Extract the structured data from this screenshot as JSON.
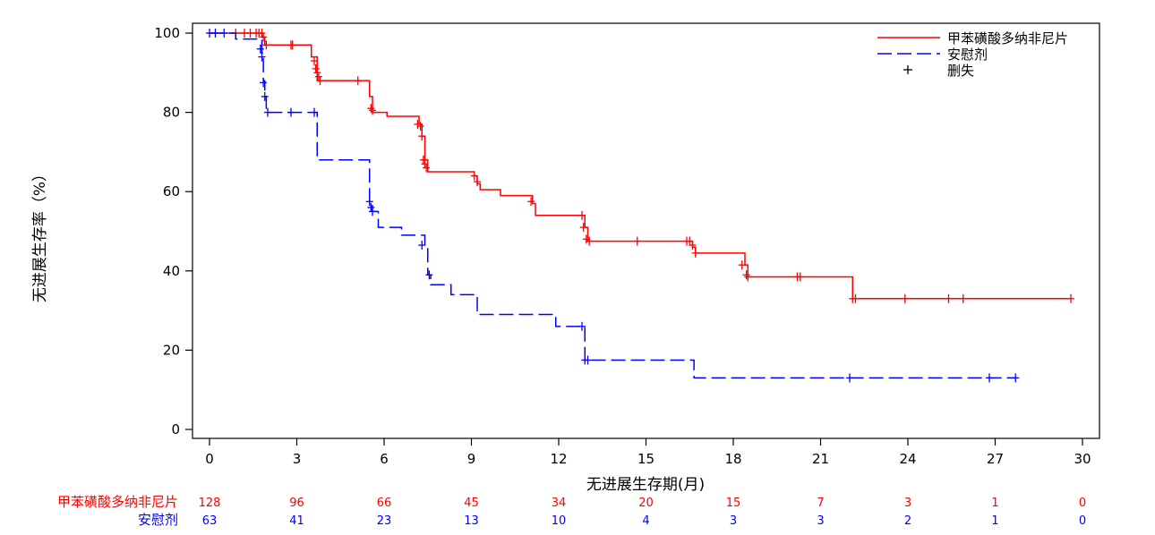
{
  "chart_data": {
    "type": "line",
    "title": "",
    "xlabel": "无进展生存期(月)",
    "ylabel": "无进展生存率（%）",
    "xlim": [
      0,
      30
    ],
    "ylim": [
      0,
      100
    ],
    "xticks": [
      0,
      3,
      6,
      9,
      12,
      15,
      18,
      21,
      24,
      27,
      30
    ],
    "yticks": [
      0,
      20,
      40,
      60,
      80,
      100
    ],
    "grid": false,
    "legend_position": "top-right",
    "legend": [
      {
        "label": "甲苯磺酸多纳非尼片",
        "style": "solid",
        "color": "#ff0000"
      },
      {
        "label": "安慰剂",
        "style": "dashed",
        "color": "#0000ff"
      },
      {
        "label": "删失",
        "style": "plus-marker",
        "color": "#000000"
      }
    ],
    "series": [
      {
        "name": "甲苯磺酸多纳非尼片",
        "color": "#ff0000",
        "style": "solid",
        "steps": [
          [
            0,
            100
          ],
          [
            1.8,
            99
          ],
          [
            1.9,
            97
          ],
          [
            3.2,
            97
          ],
          [
            3.5,
            94
          ],
          [
            3.7,
            88
          ],
          [
            5.4,
            88
          ],
          [
            5.5,
            84
          ],
          [
            5.6,
            80
          ],
          [
            6.1,
            79
          ],
          [
            7.1,
            79
          ],
          [
            7.2,
            77
          ],
          [
            7.3,
            74
          ],
          [
            7.4,
            68
          ],
          [
            7.5,
            65
          ],
          [
            9.0,
            65
          ],
          [
            9.1,
            64
          ],
          [
            9.2,
            62
          ],
          [
            9.3,
            60.5
          ],
          [
            9.9,
            60.5
          ],
          [
            10.0,
            59
          ],
          [
            11.0,
            59
          ],
          [
            11.1,
            57
          ],
          [
            11.2,
            54
          ],
          [
            12.8,
            54
          ],
          [
            12.9,
            51
          ],
          [
            13.0,
            47.5
          ],
          [
            16.5,
            47.5
          ],
          [
            16.6,
            46
          ],
          [
            16.7,
            44.5
          ],
          [
            18.3,
            44.5
          ],
          [
            18.4,
            41.5
          ],
          [
            18.5,
            38.5
          ],
          [
            22.0,
            38.5
          ],
          [
            22.1,
            33
          ],
          [
            29.6,
            33
          ]
        ],
        "censored": [
          [
            0.9,
            100
          ],
          [
            1.2,
            100
          ],
          [
            1.4,
            100
          ],
          [
            1.6,
            100
          ],
          [
            1.7,
            100
          ],
          [
            1.8,
            100
          ],
          [
            1.85,
            99
          ],
          [
            1.95,
            97
          ],
          [
            2.8,
            97
          ],
          [
            2.85,
            97
          ],
          [
            3.6,
            93
          ],
          [
            3.65,
            91
          ],
          [
            3.7,
            90
          ],
          [
            3.75,
            89
          ],
          [
            3.8,
            88
          ],
          [
            5.1,
            88
          ],
          [
            5.55,
            81
          ],
          [
            5.6,
            80.5
          ],
          [
            7.15,
            77
          ],
          [
            7.25,
            76.5
          ],
          [
            7.3,
            74
          ],
          [
            7.35,
            68
          ],
          [
            7.4,
            67
          ],
          [
            7.45,
            66
          ],
          [
            9.1,
            64
          ],
          [
            9.2,
            62.5
          ],
          [
            11.05,
            57.5
          ],
          [
            12.8,
            54
          ],
          [
            12.85,
            51
          ],
          [
            12.95,
            48
          ],
          [
            13.05,
            47.5
          ],
          [
            14.7,
            47.5
          ],
          [
            16.4,
            47.5
          ],
          [
            16.5,
            47.5
          ],
          [
            16.6,
            46.5
          ],
          [
            16.7,
            44.5
          ],
          [
            18.3,
            41.5
          ],
          [
            18.45,
            39
          ],
          [
            18.5,
            38.5
          ],
          [
            20.2,
            38.5
          ],
          [
            20.3,
            38.5
          ],
          [
            22.1,
            33
          ],
          [
            22.2,
            33
          ],
          [
            23.9,
            33
          ],
          [
            25.4,
            33
          ],
          [
            25.9,
            33
          ],
          [
            29.6,
            33
          ]
        ]
      },
      {
        "name": "安慰剂",
        "color": "#0000ff",
        "style": "dashed",
        "steps": [
          [
            0,
            100
          ],
          [
            0.9,
            98.5
          ],
          [
            1.7,
            98.5
          ],
          [
            1.8,
            95
          ],
          [
            1.85,
            88
          ],
          [
            1.9,
            84
          ],
          [
            1.95,
            80
          ],
          [
            3.6,
            80
          ],
          [
            3.7,
            68
          ],
          [
            5.4,
            68
          ],
          [
            5.5,
            57
          ],
          [
            5.6,
            55
          ],
          [
            5.8,
            51
          ],
          [
            6.5,
            51
          ],
          [
            6.6,
            49
          ],
          [
            7.3,
            49
          ],
          [
            7.4,
            46
          ],
          [
            7.5,
            39
          ],
          [
            7.6,
            36.5
          ],
          [
            8.2,
            36.5
          ],
          [
            8.3,
            34
          ],
          [
            9.1,
            34
          ],
          [
            9.2,
            29
          ],
          [
            11.8,
            29
          ],
          [
            11.9,
            26
          ],
          [
            12.8,
            26
          ],
          [
            12.9,
            17.5
          ],
          [
            16.6,
            17.5
          ],
          [
            16.65,
            13
          ],
          [
            27.7,
            13
          ]
        ],
        "censored": [
          [
            0,
            100
          ],
          [
            0.2,
            100
          ],
          [
            0.5,
            100
          ],
          [
            1.75,
            96
          ],
          [
            1.8,
            94
          ],
          [
            1.85,
            87.5
          ],
          [
            1.9,
            84
          ],
          [
            2.0,
            80
          ],
          [
            2.8,
            80
          ],
          [
            3.6,
            80
          ],
          [
            5.5,
            57.5
          ],
          [
            5.55,
            56
          ],
          [
            5.6,
            55
          ],
          [
            7.3,
            46.5
          ],
          [
            7.55,
            39
          ],
          [
            12.8,
            26
          ],
          [
            12.9,
            17.5
          ],
          [
            13.0,
            17.5
          ],
          [
            22.0,
            13
          ],
          [
            26.8,
            13
          ],
          [
            27.7,
            13
          ]
        ]
      }
    ],
    "risk_table": {
      "times": [
        0,
        3,
        6,
        9,
        12,
        15,
        18,
        21,
        24,
        27,
        30
      ],
      "rows": [
        {
          "label": "甲苯磺酸多纳非尼片",
          "color": "#ff0000",
          "values": [
            128,
            96,
            66,
            45,
            34,
            20,
            15,
            7,
            3,
            1,
            0
          ]
        },
        {
          "label": "安慰剂",
          "color": "#0000ff",
          "values": [
            63,
            41,
            23,
            13,
            10,
            4,
            3,
            3,
            2,
            1,
            0
          ]
        }
      ]
    }
  }
}
